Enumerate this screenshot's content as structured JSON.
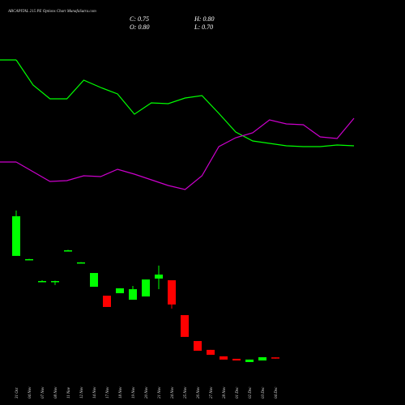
{
  "chart_data": {
    "type": "candlestick",
    "title": "ABCAPITAL 215 PE Options Chart MunafaSutra.com",
    "ohlc_text": {
      "close": "C: 0.75",
      "high": "H: 0.80",
      "open": "O: 0.80",
      "low": "L: 0.70"
    },
    "categories": [
      "31 Oct",
      "04 Nov",
      "07 Nov",
      "08 Nov",
      "11 Nov",
      "12 Nov",
      "14 Nov",
      "17 Nov",
      "18 Nov",
      "19 Nov",
      "20 Nov",
      "21 Nov",
      "24 Nov",
      "25 Nov",
      "26 Nov",
      "27 Nov",
      "28 Nov",
      "01 Dec",
      "02 Dec",
      "03 Dec",
      "04 Dec"
    ],
    "open": [
      8.63,
      8.38,
      6.69,
      6.69,
      9.06,
      8.13,
      6.25,
      5.56,
      5.75,
      5.25,
      5.5,
      6.88,
      6.75,
      4.06,
      2.06,
      1.38,
      0.88,
      0.69,
      0.44,
      0.56,
      0.8
    ],
    "high": [
      12.13,
      8.4,
      6.75,
      6.72,
      9.1,
      8.15,
      7.31,
      5.56,
      6.13,
      6.31,
      6.81,
      7.88,
      6.75,
      4.06,
      2.06,
      1.38,
      0.88,
      0.69,
      0.63,
      0.81,
      0.8
    ],
    "low": [
      8.63,
      8.35,
      6.65,
      6.38,
      9.02,
      8.1,
      6.25,
      4.69,
      5.75,
      5.25,
      5.5,
      6.06,
      4.56,
      2.38,
      1.31,
      1.0,
      0.63,
      0.56,
      0.44,
      0.56,
      0.7
    ],
    "close": [
      11.69,
      8.38,
      6.69,
      6.69,
      9.06,
      8.13,
      7.31,
      4.69,
      6.13,
      6.06,
      6.81,
      7.19,
      4.88,
      2.38,
      1.31,
      1.0,
      0.63,
      0.56,
      0.63,
      0.81,
      0.75
    ],
    "up_color": "#00ff00",
    "down_color": "#ff0000",
    "ylim": [
      -2.25,
      25.25
    ],
    "lines": {
      "ylim": [
        0,
        250
      ],
      "series": [
        {
          "color": "#00ff00",
          "values": [
            226,
            195,
            178,
            178,
            201,
            192,
            184,
            159,
            173,
            172,
            179,
            182,
            160,
            137,
            126,
            123,
            120,
            119,
            119,
            121,
            120
          ]
        },
        {
          "color": "#cc00cc",
          "values": [
            100,
            88,
            76,
            77,
            83,
            82,
            91,
            85,
            78,
            71,
            66,
            83,
            119,
            130,
            136,
            152,
            147,
            146,
            131,
            129,
            154
          ]
        }
      ]
    }
  }
}
